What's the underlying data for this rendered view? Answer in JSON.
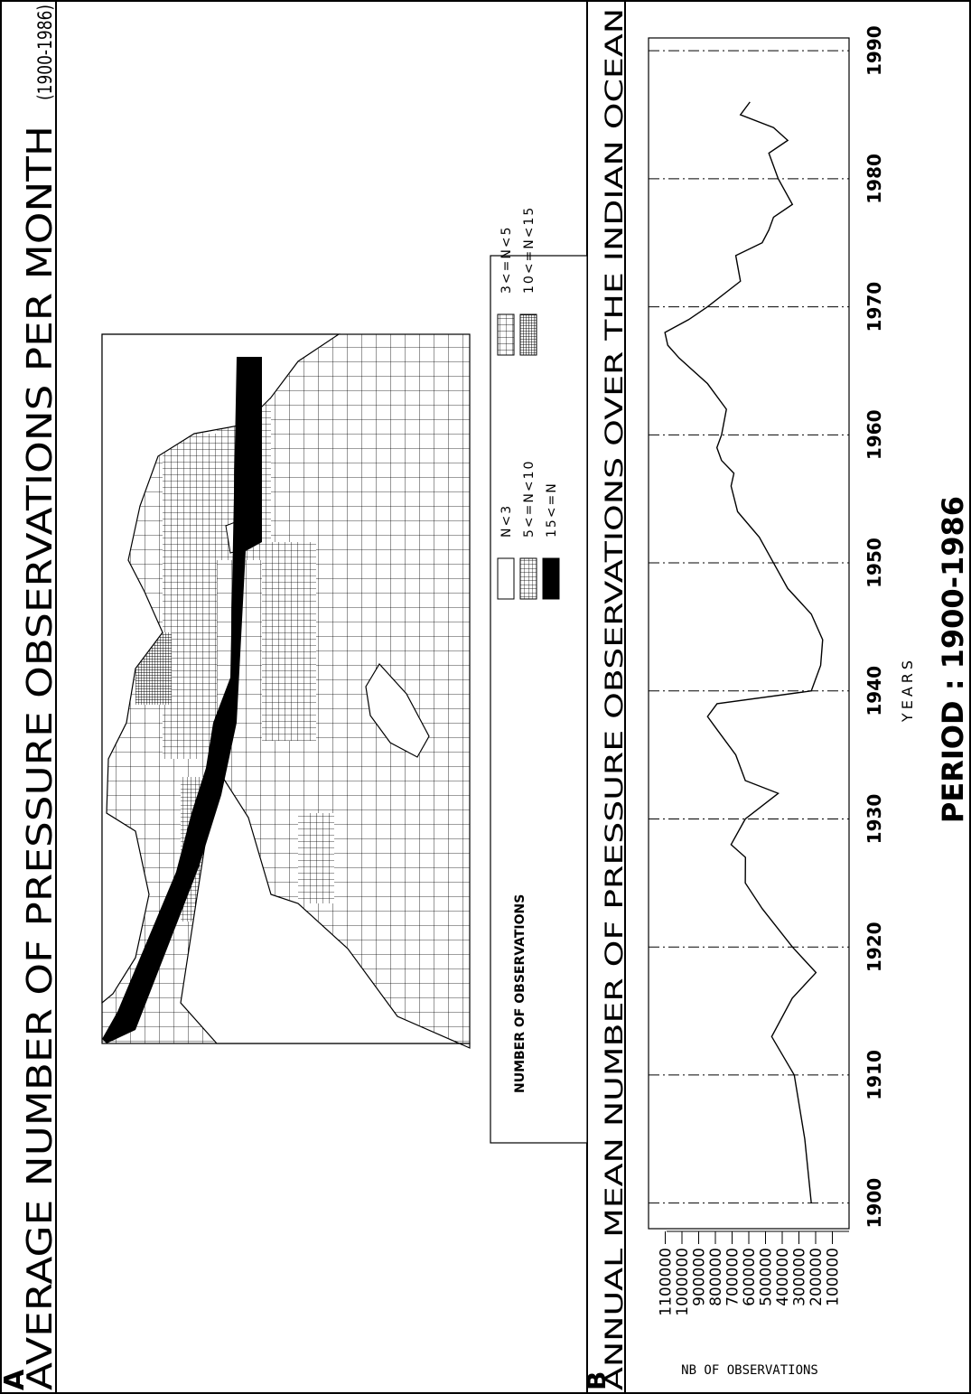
{
  "panel_a": {
    "letter": "A",
    "title": "AVERAGE NUMBER OF PRESSURE OBSERVATIONS PER MONTH",
    "period": "(1900-1986)",
    "legend": {
      "title": "NUMBER OF OBSERVATIONS",
      "items": [
        "N<3",
        "3<=N<5",
        "5<=N<10",
        "10<=N<15",
        "15<=N"
      ]
    }
  },
  "chart_data": {
    "type": "line",
    "panel_letter": "B",
    "title": "ANNUAL MEAN NUMBER OF PRESSURE OBSERVATIONS OVER THE INDIAN OCEAN",
    "x_label": "YEARS",
    "y_label": "NB OF OBSERVATIONS",
    "caption": "PERIOD : 1900-1986",
    "x": [
      1900,
      1905,
      1910,
      1913,
      1916,
      1918,
      1920,
      1923,
      1925,
      1927,
      1928,
      1930,
      1932,
      1933,
      1935,
      1937,
      1938,
      1939,
      1940,
      1942,
      1944,
      1946,
      1948,
      1950,
      1952,
      1954,
      1956,
      1957,
      1958,
      1959,
      1960,
      1962,
      1964,
      1966,
      1967,
      1968,
      1969,
      1970,
      1972,
      1974,
      1975,
      1976,
      1977,
      1978,
      1980,
      1982,
      1983,
      1984,
      1985,
      1986
    ],
    "values": [
      226000,
      265000,
      328000,
      463000,
      340000,
      198000,
      339000,
      520000,
      621000,
      620000,
      706000,
      621000,
      424000,
      621000,
      678000,
      791000,
      847000,
      790000,
      226000,
      170000,
      158000,
      226000,
      367000,
      452000,
      537000,
      667000,
      706000,
      689000,
      763000,
      791000,
      763000,
      734000,
      847000,
      1017000,
      1085000,
      1102000,
      960000,
      847000,
      650000,
      678000,
      520000,
      480000,
      452000,
      339000,
      424000,
      480000,
      367000,
      452000,
      650000,
      593000
    ],
    "color": "#000000",
    "xlim": [
      1898,
      1991
    ],
    "ylim": [
      0,
      1200000
    ],
    "xticks": [
      1900,
      1910,
      1920,
      1930,
      1940,
      1950,
      1960,
      1970,
      1980,
      1990
    ],
    "yticks": [
      100000,
      200000,
      300000,
      400000,
      500000,
      600000,
      700000,
      800000,
      900000,
      1000000,
      1100000
    ],
    "grid": true
  }
}
